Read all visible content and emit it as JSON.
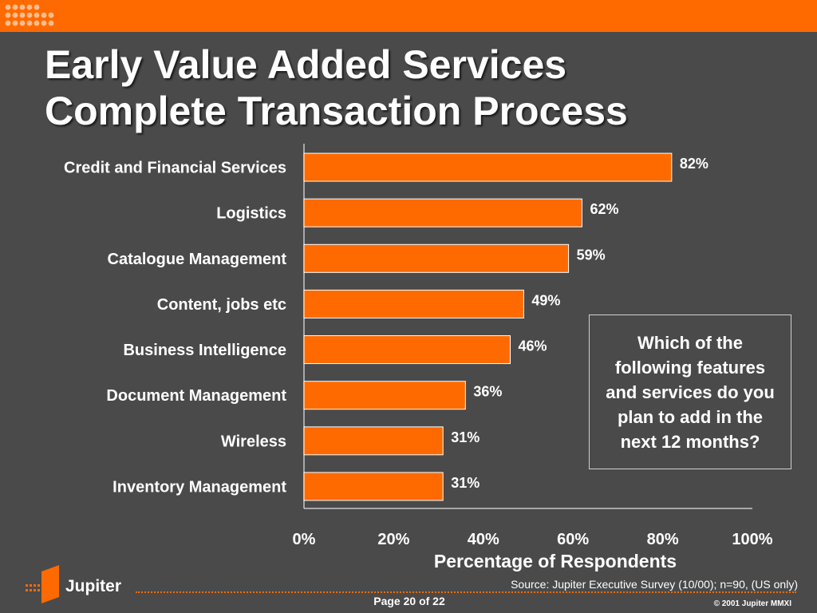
{
  "title_lines": [
    "Early Value Added Services",
    "Complete Transaction Process"
  ],
  "question": "Which of the following features and services do you plan to add in the next 12 months?",
  "footer": {
    "brand": "Jupiter",
    "source": "Source:  Jupiter Executive Survey (10/00); n=90, (US only)",
    "page": "Page 20 of 22",
    "copyright": "© 2001 Jupiter MMXI"
  },
  "colors": {
    "accent": "#ff6a00",
    "background": "#4a4a4a",
    "text": "#ffffff"
  },
  "chart_data": {
    "type": "bar",
    "orientation": "horizontal",
    "categories": [
      "Credit and Financial Services",
      "Logistics",
      "Catalogue Management",
      "Content, jobs etc",
      "Business Intelligence",
      "Document Management",
      "Wireless",
      "Inventory Management"
    ],
    "values": [
      82,
      62,
      59,
      49,
      46,
      36,
      31,
      31
    ],
    "value_labels": [
      "82%",
      "62%",
      "59%",
      "49%",
      "46%",
      "36%",
      "31%",
      "31%"
    ],
    "xlabel": "Percentage of Respondents",
    "xlim": [
      0,
      100
    ],
    "xticks": [
      0,
      20,
      40,
      60,
      80,
      100
    ],
    "xtick_labels": [
      "0%",
      "20%",
      "40%",
      "60%",
      "80%",
      "100%"
    ],
    "grid": false,
    "bar_color": "#ff6a00"
  }
}
